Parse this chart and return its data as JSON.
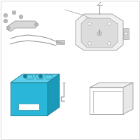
{
  "bg": "#ffffff",
  "border": "#cccccc",
  "batt_front": "#29b6d8",
  "batt_top": "#5cd0ea",
  "batt_right": "#1a9ab8",
  "batt_edge": "#1a7a90",
  "batt_handle_fill": "#1a7a90",
  "gray_line": "#999999",
  "gray_fill": "#cccccc",
  "gray_dark": "#888888",
  "gray_light": "#e8e8e8",
  "white": "#ffffff",
  "lw": 0.6,
  "tlw": 0.4
}
